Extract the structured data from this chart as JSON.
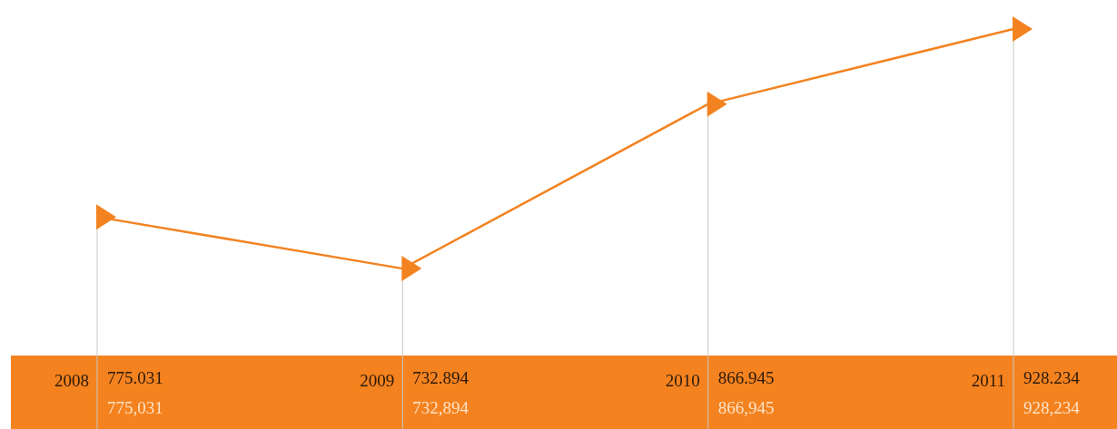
{
  "chart_data": {
    "type": "line",
    "categories": [
      "2008",
      "2009",
      "2010",
      "2011"
    ],
    "values": [
      775.031,
      732.894,
      866.945,
      928.234
    ],
    "value_labels": [
      "775.031",
      "732.894",
      "866.945",
      "928.234"
    ],
    "annotations": [
      "775,031",
      "732,894",
      "866,945",
      "928,234"
    ],
    "color": "#f38321",
    "marker": "triangle",
    "line_style": "solid",
    "grid": "x"
  }
}
